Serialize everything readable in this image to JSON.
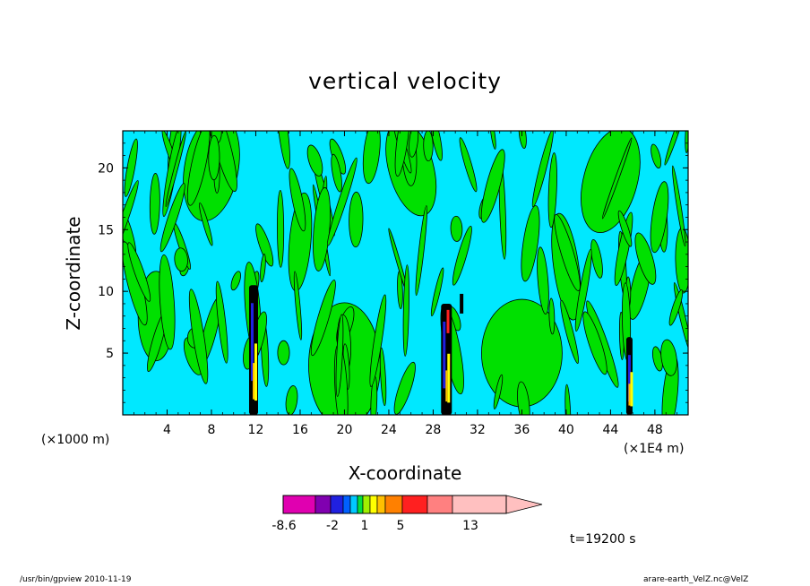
{
  "chart_data": {
    "type": "heatmap",
    "title": "vertical velocity",
    "xlabel": "X-coordinate",
    "ylabel": "Z-coordinate",
    "x_unit_left": "(×1000 m)",
    "x_unit_right": "(×1E4 m)",
    "xticks": [
      "4",
      "8",
      "12",
      "16",
      "20",
      "24",
      "28",
      "32",
      "36",
      "40",
      "44",
      "48"
    ],
    "yticks": [
      "5",
      "10",
      "15",
      "20"
    ],
    "xlim": [
      0,
      51
    ],
    "ylim": [
      0,
      23
    ],
    "colorbar": {
      "labels": [
        "-8.6",
        "-2",
        "1",
        "5",
        "13"
      ],
      "colors": [
        "#e000b0",
        "#8000b0",
        "#2020e0",
        "#0060ff",
        "#00c8ff",
        "#00e040",
        "#a0f000",
        "#ffff00",
        "#ffc000",
        "#ff8000",
        "#ff2020",
        "#ff8080",
        "#ffc0c0"
      ]
    },
    "background_colors": {
      "cyan": "#00e8ff",
      "green": "#00e000"
    },
    "time_label": "t=19200 s"
  },
  "footer": {
    "left": "/usr/bin/gpview   2010-11-19",
    "right": "arare-earth_VelZ.nc@VelZ"
  }
}
